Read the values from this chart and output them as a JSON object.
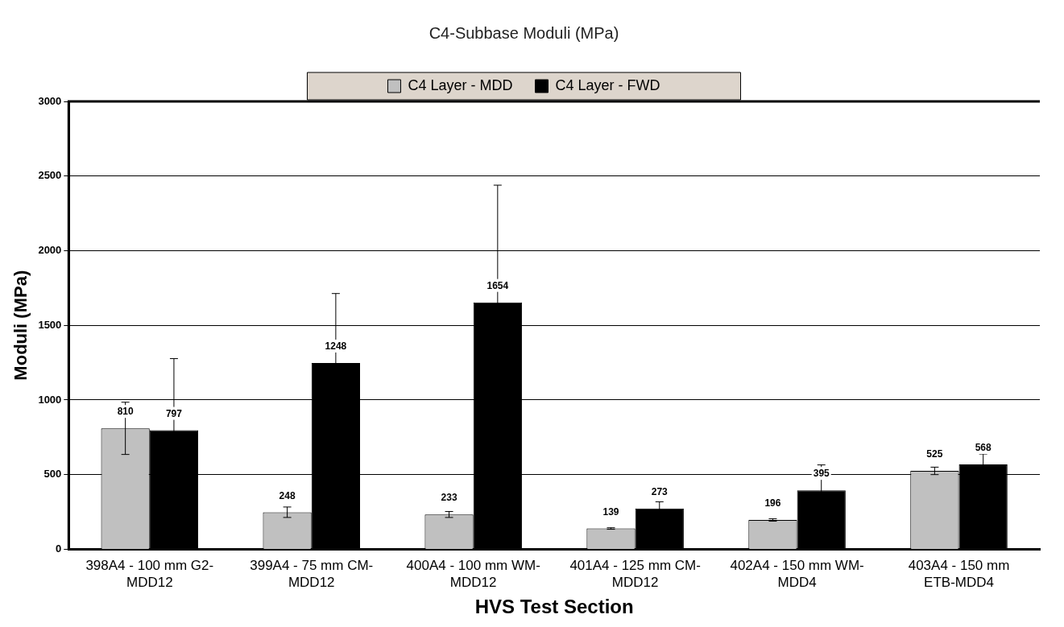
{
  "chart_data": {
    "type": "bar",
    "title": "C4-Subbase Moduli (MPa)",
    "xlabel": "HVS Test Section",
    "ylabel": "Moduli (MPa)",
    "categories": [
      "398A4 - 100 mm G2-MDD12",
      "399A4 - 75 mm CM-MDD12",
      "400A4 - 100 mm WM-MDD12",
      "401A4 - 125 mm CM-MDD12",
      "402A4 - 150 mm WM-MDD4",
      "403A4 - 150 mm ETB-MDD4"
    ],
    "series": [
      {
        "name": "C4 Layer - MDD",
        "color": "#c0c0c0",
        "values": [
          810,
          248,
          233,
          139,
          196,
          525
        ],
        "errors": [
          175,
          35,
          20,
          5,
          8,
          25
        ]
      },
      {
        "name": "C4 Layer - FWD",
        "color": "#000000",
        "values": [
          797,
          1248,
          1654,
          273,
          395,
          568
        ],
        "errors": [
          480,
          465,
          785,
          45,
          170,
          70
        ]
      }
    ],
    "ylim": [
      0,
      3000
    ],
    "yticks": [
      0,
      500,
      1000,
      1500,
      2000,
      2500,
      3000
    ],
    "grid": "y",
    "legend": "top",
    "data_labels": true
  }
}
